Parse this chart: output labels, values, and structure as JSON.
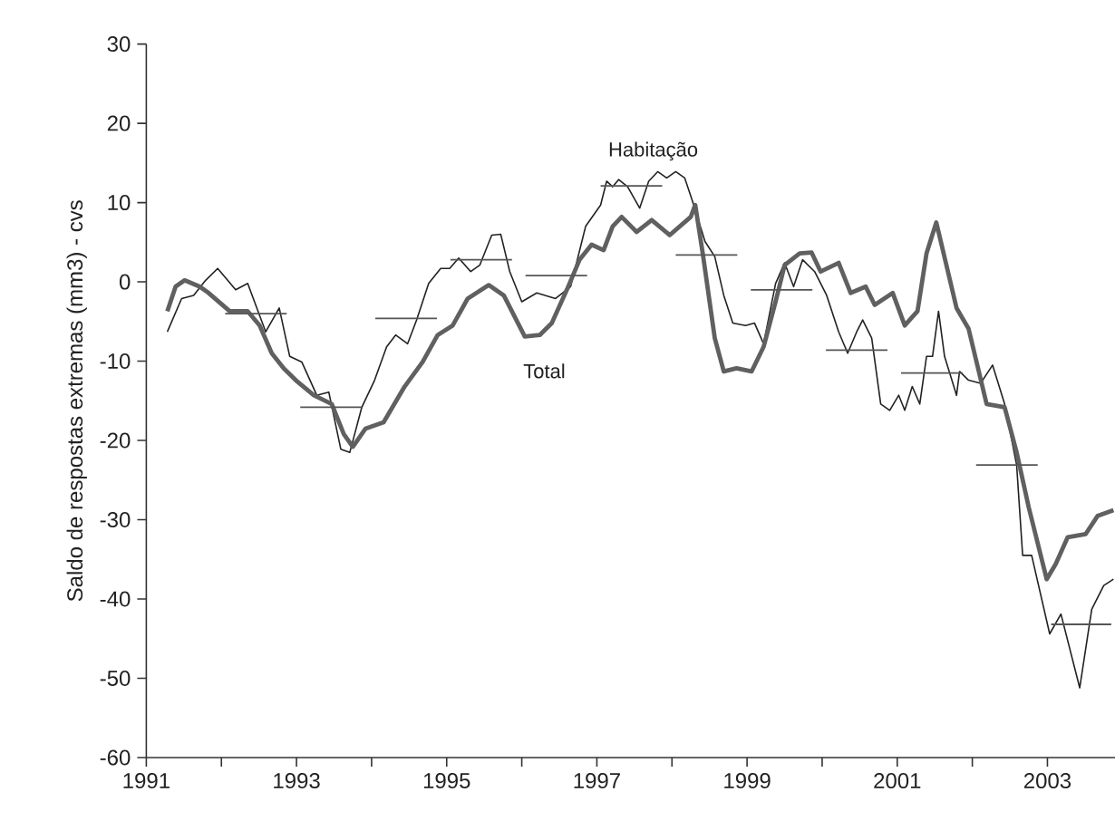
{
  "chart_data": {
    "type": "line",
    "ylabel": "Saldo de respostas extremas (mm3) - cvs",
    "xlim": [
      1991,
      2003.9
    ],
    "ylim": [
      -60,
      30
    ],
    "xticks": [
      1991,
      {
        "value": 1992,
        "label": null
      },
      1993,
      {
        "value": 1994,
        "label": null
      },
      1995,
      {
        "value": 1996,
        "label": null
      },
      1997,
      {
        "value": 1998,
        "label": null
      },
      1999,
      {
        "value": 2000,
        "label": null
      },
      2001,
      {
        "value": 2002,
        "label": null
      },
      2003
    ],
    "yticks": [
      -60,
      -50,
      -40,
      -30,
      -20,
      -10,
      0,
      10,
      20,
      30
    ],
    "series": [
      {
        "name": "Habitação",
        "color": "#222222",
        "x": [
          1991.28,
          1991.47,
          1991.63,
          1991.79,
          1991.95,
          1992.19,
          1992.35,
          1992.59,
          1992.77,
          1992.91,
          1993.07,
          1993.27,
          1993.43,
          1993.59,
          1993.71,
          1993.87,
          1994.04,
          1994.2,
          1994.32,
          1994.48,
          1994.6,
          1994.76,
          1994.92,
          1995.04,
          1995.16,
          1995.32,
          1995.44,
          1995.6,
          1995.72,
          1995.84,
          1996.0,
          1996.2,
          1996.45,
          1996.65,
          1996.85,
          1997.05,
          1997.13,
          1997.21,
          1997.29,
          1997.41,
          1997.57,
          1997.69,
          1997.81,
          1997.93,
          1998.05,
          1998.17,
          1998.29,
          1998.44,
          1998.57,
          1998.69,
          1998.81,
          1998.98,
          1999.1,
          1999.22,
          1999.38,
          1999.5,
          1999.62,
          1999.74,
          1999.9,
          2000.06,
          2000.22,
          2000.34,
          2000.46,
          2000.54,
          2000.66,
          2000.78,
          2000.9,
          2001.02,
          2001.1,
          2001.2,
          2001.3,
          2001.39,
          2001.47,
          2001.55,
          2001.63,
          2001.79,
          2001.83,
          2001.95,
          2002.11,
          2002.27,
          2002.43,
          2002.59,
          2002.67,
          2002.79,
          2003.03,
          2003.18,
          2003.43,
          2003.59,
          2003.75,
          2003.88
        ],
        "values": [
          -6.3,
          -2.1,
          -1.7,
          0.2,
          1.7,
          -1,
          -0.2,
          -6.3,
          -3.3,
          -9.4,
          -10.1,
          -14.3,
          -13.9,
          -21.1,
          -21.5,
          -15.8,
          -12.4,
          -8.2,
          -6.7,
          -7.8,
          -4.8,
          -0.2,
          1.7,
          1.7,
          3.0,
          1.3,
          2.1,
          5.9,
          6.0,
          1.3,
          -2.5,
          -1.4,
          -2.1,
          -0.6,
          7.0,
          9.7,
          12.7,
          12.0,
          12.9,
          12.0,
          9.3,
          12.7,
          13.9,
          13.1,
          13.9,
          13.1,
          9.7,
          5.1,
          3.2,
          -1.7,
          -5.2,
          -5.5,
          -5.2,
          -7.8,
          -0.2,
          2.4,
          -0.6,
          2.8,
          1.3,
          -1.7,
          -6.3,
          -9.0,
          -6.3,
          -4.8,
          -7.1,
          -15.4,
          -16.2,
          -14.3,
          -16.2,
          -13.2,
          -15.4,
          -9.4,
          -9.4,
          -3.7,
          -9.4,
          -14.3,
          -11.3,
          -12.4,
          -12.8,
          -10.5,
          -15.4,
          -23.1,
          -34.5,
          -34.5,
          -44.4,
          -41.9,
          -51.2,
          -41.3,
          -38.3,
          -37.5
        ]
      },
      {
        "name": "Total",
        "color": "#606060",
        "x": [
          1991.28,
          1991.39,
          1991.51,
          1991.71,
          1991.83,
          1992.11,
          1992.35,
          1992.51,
          1992.67,
          1992.83,
          1992.99,
          1993.23,
          1993.47,
          1993.63,
          1993.75,
          1993.92,
          1994.16,
          1994.44,
          1994.68,
          1994.88,
          1995.08,
          1995.28,
          1995.56,
          1995.76,
          1996.04,
          1996.24,
          1996.4,
          1996.6,
          1996.77,
          1996.93,
          1997.09,
          1997.21,
          1997.33,
          1997.53,
          1997.73,
          1997.97,
          1998.25,
          1998.31,
          1998.41,
          1998.57,
          1998.69,
          1998.86,
          1999.06,
          1999.22,
          1999.38,
          1999.5,
          1999.7,
          1999.86,
          1999.98,
          2000.22,
          2000.38,
          2000.58,
          2000.7,
          2000.94,
          2001.1,
          2001.27,
          2001.39,
          2001.52,
          2001.79,
          2001.95,
          2002.19,
          2002.43,
          2002.59,
          2002.75,
          2002.99,
          2003.11,
          2003.27,
          2003.51,
          2003.67,
          2003.88
        ],
        "values": [
          -3.7,
          -0.6,
          0.2,
          -0.6,
          -1.4,
          -3.7,
          -3.7,
          -5.5,
          -9.0,
          -10.9,
          -12.4,
          -14.3,
          -15.4,
          -19.2,
          -20.8,
          -18.5,
          -17.7,
          -13.2,
          -10.1,
          -6.7,
          -5.5,
          -2.1,
          -0.4,
          -1.7,
          -6.9,
          -6.7,
          -5.2,
          -1.0,
          2.8,
          4.7,
          4.0,
          7.0,
          8.2,
          6.3,
          7.8,
          5.9,
          8.2,
          9.7,
          3.6,
          -7.1,
          -11.3,
          -10.9,
          -11.3,
          -8.2,
          -2.5,
          2.1,
          3.6,
          3.7,
          1.3,
          2.4,
          -1.4,
          -0.6,
          -2.9,
          -1.4,
          -5.5,
          -3.7,
          3.6,
          7.5,
          -3.3,
          -5.9,
          -15.4,
          -15.8,
          -21.5,
          -28.4,
          -37.5,
          -35.6,
          -32.2,
          -31.8,
          -29.5,
          -28.8
        ]
      },
      {
        "color": "#555555",
        "x": [
          1992.05,
          1992.87,
          null,
          1993.05,
          1993.87,
          null,
          1994.05,
          1994.87,
          null,
          1995.05,
          1995.87,
          null,
          1996.05,
          1996.87,
          null,
          1997.05,
          1997.87,
          null,
          1998.05,
          1998.87,
          null,
          1999.05,
          1999.87,
          null,
          2000.05,
          2000.87,
          null,
          2001.05,
          2001.87,
          null,
          2002.05,
          2002.87,
          null,
          2003.05,
          2003.85
        ],
        "values": [
          -4.0,
          -4.0,
          null,
          -15.8,
          -15.8,
          null,
          -4.6,
          -4.6,
          null,
          2.8,
          2.8,
          null,
          0.8,
          0.8,
          null,
          12.1,
          12.1,
          null,
          3.4,
          3.4,
          null,
          -1.0,
          -1.0,
          null,
          -8.6,
          -8.6,
          null,
          -11.5,
          -11.5,
          null,
          -23.1,
          -23.1,
          null,
          -43.2,
          -43.2
        ]
      }
    ]
  }
}
